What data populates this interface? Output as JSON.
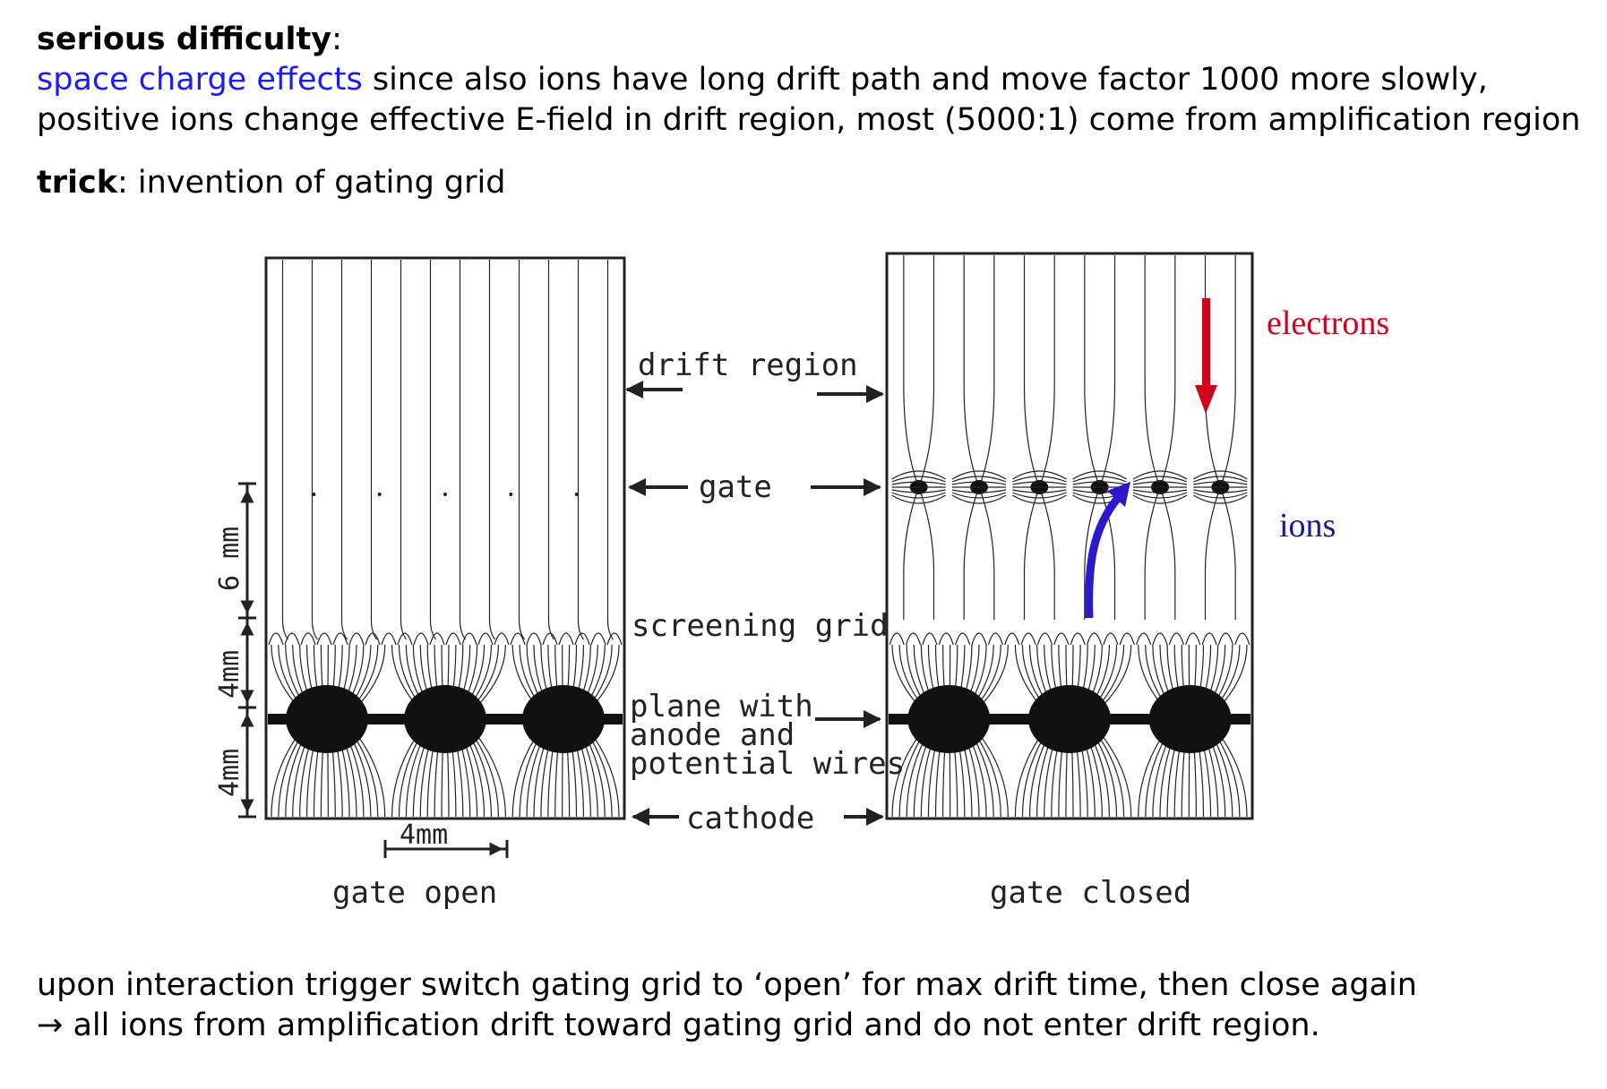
{
  "header": {
    "difficulty_label": "serious difficulty",
    "difficulty_colon": ":",
    "space_charge_term": "space charge effects",
    "line2_rest": " since also ions have long drift path and move factor 1000 more slowly,",
    "line3": "positive ions change effective E-field in drift region, most (5000:1) come from amplification region",
    "trick_label": "trick",
    "trick_rest": ":  invention of gating grid"
  },
  "diagram": {
    "labels": {
      "drift_region": "drift region",
      "gate": "gate",
      "screening_grid": "screening grid",
      "plane_line1": "plane with",
      "plane_line2": "anode and",
      "plane_line3": "potential wires",
      "cathode": "cathode",
      "dim_6mm": "6 mm",
      "dim_4mm_upper": "4mm",
      "dim_4mm_lower": "4mm",
      "dim_4mm_horizontal": "4mm",
      "caption_open": "gate   open",
      "caption_closed": "gate   closed",
      "electrons": "electrons",
      "ions": "ions"
    },
    "colors": {
      "electrons": "#d0021b",
      "ions": "#2a1acc",
      "blue_text": "#1a1aff"
    }
  },
  "footer": {
    "line1": "upon interaction trigger switch gating grid to ‘open’ for max drift time, then close again",
    "arrow": "→",
    "line2": " all ions from amplification drift toward gating grid and do not enter drift region."
  }
}
